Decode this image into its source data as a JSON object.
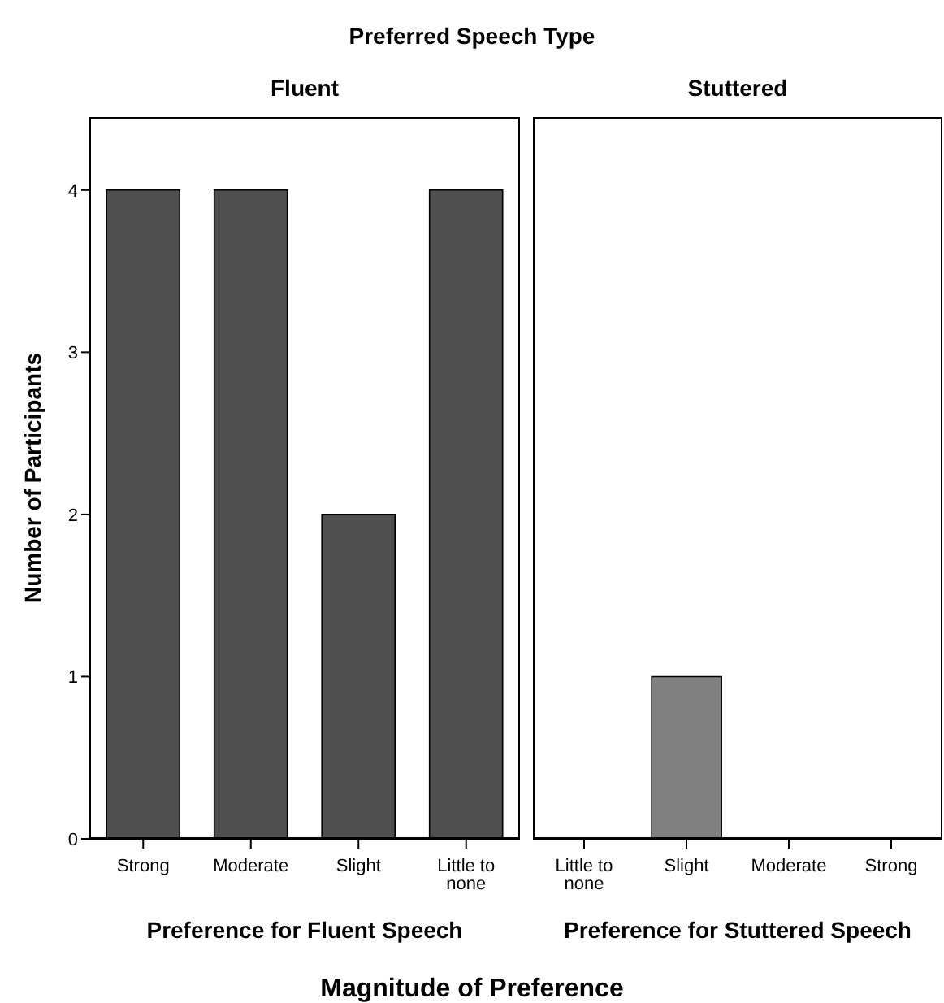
{
  "chart_data": [
    {
      "type": "bar",
      "title": "Fluent",
      "xlabel": "Preference for Fluent Speech",
      "ylabel": "Number of Participants",
      "annotations": [
        "Preferred Speech Type",
        "Magnitude of Preference"
      ],
      "categories": [
        "Strong",
        "Moderate",
        "Slight",
        "Little to none"
      ],
      "values": [
        4,
        4,
        2,
        4
      ],
      "color": "#4f4f4f",
      "ylim": [
        0,
        4.45
      ],
      "yticks": [
        0,
        1,
        2,
        3,
        4
      ]
    },
    {
      "type": "bar",
      "title": "Stuttered",
      "xlabel": "Preference for Stuttered Speech",
      "categories": [
        "Little to none",
        "Slight",
        "Moderate",
        "Strong"
      ],
      "values": [
        0,
        1,
        0,
        0
      ],
      "color": "#808080",
      "ylim": [
        0,
        4.45
      ],
      "yticks": [
        0,
        1,
        2,
        3,
        4
      ],
      "tick_labels": "x"
    }
  ]
}
